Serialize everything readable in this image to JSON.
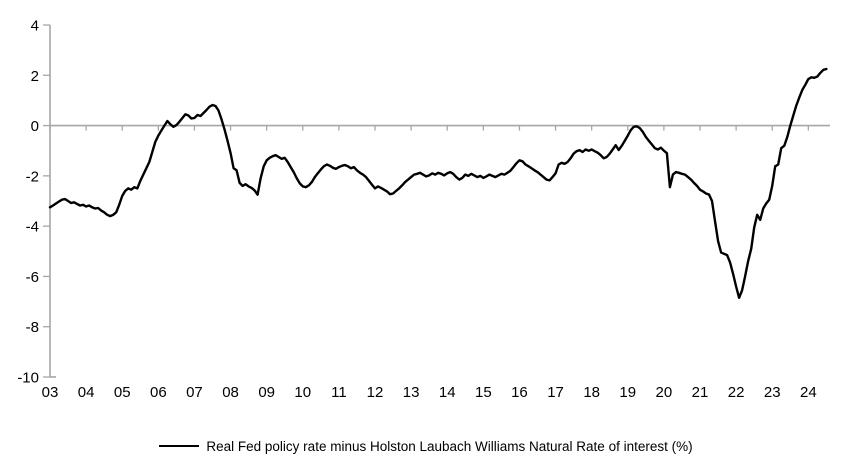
{
  "page": {
    "background": "#ffffff"
  },
  "legend": {
    "label": "Real Fed policy rate minus Holston Laubach Williams Natural Rate of interest (%)"
  },
  "chart_data": {
    "type": "line",
    "title": "",
    "xlabel": "",
    "ylabel": "",
    "ylim": [
      -10,
      4
    ],
    "xlim": [
      2003,
      2024.6
    ],
    "y_ticks": [
      4,
      2,
      0,
      -2,
      -4,
      -6,
      -8,
      -10
    ],
    "x_tick_years": [
      2003,
      2004,
      2005,
      2006,
      2007,
      2008,
      2009,
      2010,
      2011,
      2012,
      2013,
      2014,
      2015,
      2016,
      2017,
      2018,
      2019,
      2020,
      2021,
      2022,
      2023,
      2024
    ],
    "x_tick_labels": [
      "03",
      "04",
      "05",
      "06",
      "07",
      "08",
      "09",
      "10",
      "11",
      "12",
      "13",
      "14",
      "15",
      "16",
      "17",
      "18",
      "19",
      "20",
      "21",
      "22",
      "23",
      "24"
    ],
    "grid": "zero-line-only",
    "legend_position": "bottom",
    "axis_color": "#A6A6A6",
    "text_color": "#000000",
    "series": [
      {
        "name": "Real Fed policy rate minus Holston Laubach Williams Natural Rate of interest (%)",
        "color": "#000000",
        "stroke_width": 2.4,
        "x_start": 2003.0,
        "x_step": 0.083333,
        "values": [
          -3.25,
          -3.18,
          -3.1,
          -3.02,
          -2.95,
          -2.92,
          -3.0,
          -3.08,
          -3.05,
          -3.12,
          -3.18,
          -3.15,
          -3.22,
          -3.18,
          -3.25,
          -3.3,
          -3.28,
          -3.38,
          -3.45,
          -3.55,
          -3.6,
          -3.55,
          -3.45,
          -3.15,
          -2.8,
          -2.6,
          -2.5,
          -2.55,
          -2.45,
          -2.5,
          -2.2,
          -1.95,
          -1.7,
          -1.45,
          -1.05,
          -0.65,
          -0.4,
          -0.2,
          0.0,
          0.18,
          0.05,
          -0.05,
          0.02,
          0.15,
          0.3,
          0.45,
          0.4,
          0.28,
          0.3,
          0.42,
          0.38,
          0.5,
          0.62,
          0.75,
          0.82,
          0.78,
          0.6,
          0.25,
          -0.15,
          -0.6,
          -1.1,
          -1.7,
          -1.78,
          -2.28,
          -2.4,
          -2.33,
          -2.42,
          -2.48,
          -2.58,
          -2.75,
          -2.1,
          -1.62,
          -1.38,
          -1.28,
          -1.22,
          -1.18,
          -1.25,
          -1.32,
          -1.28,
          -1.45,
          -1.65,
          -1.85,
          -2.1,
          -2.3,
          -2.42,
          -2.45,
          -2.38,
          -2.25,
          -2.05,
          -1.9,
          -1.75,
          -1.62,
          -1.55,
          -1.6,
          -1.68,
          -1.72,
          -1.65,
          -1.6,
          -1.57,
          -1.62,
          -1.7,
          -1.65,
          -1.78,
          -1.88,
          -1.95,
          -2.05,
          -2.2,
          -2.35,
          -2.5,
          -2.42,
          -2.48,
          -2.55,
          -2.62,
          -2.73,
          -2.7,
          -2.6,
          -2.5,
          -2.38,
          -2.25,
          -2.15,
          -2.05,
          -1.95,
          -1.92,
          -1.88,
          -1.95,
          -2.02,
          -1.98,
          -1.9,
          -1.95,
          -1.88,
          -1.92,
          -1.98,
          -1.9,
          -1.85,
          -1.92,
          -2.05,
          -2.15,
          -2.08,
          -1.95,
          -2.0,
          -1.92,
          -1.98,
          -2.05,
          -2.0,
          -2.08,
          -2.02,
          -1.95,
          -2.0,
          -2.05,
          -1.98,
          -1.92,
          -1.95,
          -1.88,
          -1.8,
          -1.65,
          -1.5,
          -1.38,
          -1.42,
          -1.55,
          -1.62,
          -1.7,
          -1.78,
          -1.85,
          -1.95,
          -2.05,
          -2.15,
          -2.18,
          -2.05,
          -1.9,
          -1.55,
          -1.48,
          -1.52,
          -1.45,
          -1.3,
          -1.12,
          -1.02,
          -0.98,
          -1.05,
          -0.95,
          -1.0,
          -0.95,
          -1.02,
          -1.08,
          -1.18,
          -1.3,
          -1.25,
          -1.12,
          -0.95,
          -0.78,
          -0.97,
          -0.8,
          -0.6,
          -0.4,
          -0.18,
          -0.05,
          -0.03,
          -0.1,
          -0.25,
          -0.45,
          -0.6,
          -0.75,
          -0.9,
          -0.95,
          -0.88,
          -1.0,
          -1.1,
          -2.45,
          -1.95,
          -1.85,
          -1.88,
          -1.92,
          -1.95,
          -2.05,
          -2.15,
          -2.28,
          -2.4,
          -2.55,
          -2.62,
          -2.7,
          -2.74,
          -3.0,
          -3.8,
          -4.6,
          -5.05,
          -5.1,
          -5.15,
          -5.45,
          -5.9,
          -6.4,
          -6.85,
          -6.55,
          -6.0,
          -5.4,
          -4.9,
          -4.05,
          -3.55,
          -3.75,
          -3.3,
          -3.1,
          -2.95,
          -2.4,
          -1.62,
          -1.55,
          -0.9,
          -0.8,
          -0.45,
          0.0,
          0.4,
          0.8,
          1.12,
          1.42,
          1.62,
          1.85,
          1.92,
          1.9,
          1.95,
          2.1,
          2.22,
          2.25
        ]
      }
    ]
  }
}
